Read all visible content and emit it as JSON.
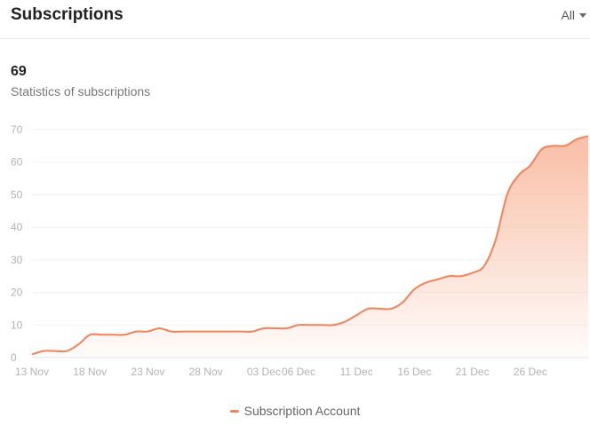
{
  "header": {
    "title": "Subscriptions",
    "filter_label": "All"
  },
  "summary": {
    "value": "69",
    "label": "Statistics of subscriptions"
  },
  "colors": {
    "line": "#f2825a",
    "fill_top": "#f9b79b",
    "grid": "#f1f1f1",
    "axis_text": "#b3b3b3"
  },
  "chart_data": {
    "type": "area",
    "ylim": [
      0,
      70
    ],
    "yticks": [
      0,
      10,
      20,
      30,
      40,
      50,
      60,
      70
    ],
    "grid": true,
    "legend": "bottom",
    "x_tick_labels": [
      {
        "day": 0,
        "label": "13 Nov"
      },
      {
        "day": 5,
        "label": "18 Nov"
      },
      {
        "day": 10,
        "label": "23 Nov"
      },
      {
        "day": 15,
        "label": "28 Nov"
      },
      {
        "day": 20,
        "label": "03 Dec"
      },
      {
        "day": 23,
        "label": "06 Dec"
      },
      {
        "day": 28,
        "label": "11 Dec"
      },
      {
        "day": 33,
        "label": "16 Dec"
      },
      {
        "day": 38,
        "label": "21 Dec"
      },
      {
        "day": 43,
        "label": "26 Dec"
      }
    ],
    "series": [
      {
        "name": "Subscription Account",
        "points": [
          [
            0,
            1
          ],
          [
            1,
            2
          ],
          [
            2,
            2
          ],
          [
            3,
            2
          ],
          [
            4,
            4
          ],
          [
            5,
            7
          ],
          [
            6,
            7
          ],
          [
            7,
            7
          ],
          [
            8,
            7
          ],
          [
            9,
            8
          ],
          [
            10,
            8
          ],
          [
            11,
            9
          ],
          [
            12,
            8
          ],
          [
            13,
            8
          ],
          [
            14,
            8
          ],
          [
            15,
            8
          ],
          [
            16,
            8
          ],
          [
            17,
            8
          ],
          [
            18,
            8
          ],
          [
            19,
            8
          ],
          [
            20,
            9
          ],
          [
            21,
            9
          ],
          [
            22,
            9
          ],
          [
            23,
            10
          ],
          [
            24,
            10
          ],
          [
            25,
            10
          ],
          [
            26,
            10
          ],
          [
            27,
            11
          ],
          [
            28,
            13
          ],
          [
            29,
            15
          ],
          [
            30,
            15
          ],
          [
            31,
            15
          ],
          [
            32,
            17
          ],
          [
            33,
            21
          ],
          [
            34,
            23
          ],
          [
            35,
            24
          ],
          [
            36,
            25
          ],
          [
            37,
            25
          ],
          [
            38,
            26
          ],
          [
            39,
            28
          ],
          [
            40,
            36
          ],
          [
            41,
            50
          ],
          [
            42,
            56
          ],
          [
            43,
            59
          ],
          [
            44,
            64
          ],
          [
            45,
            65
          ],
          [
            46,
            65
          ],
          [
            47,
            67
          ],
          [
            48,
            68
          ]
        ]
      }
    ]
  }
}
